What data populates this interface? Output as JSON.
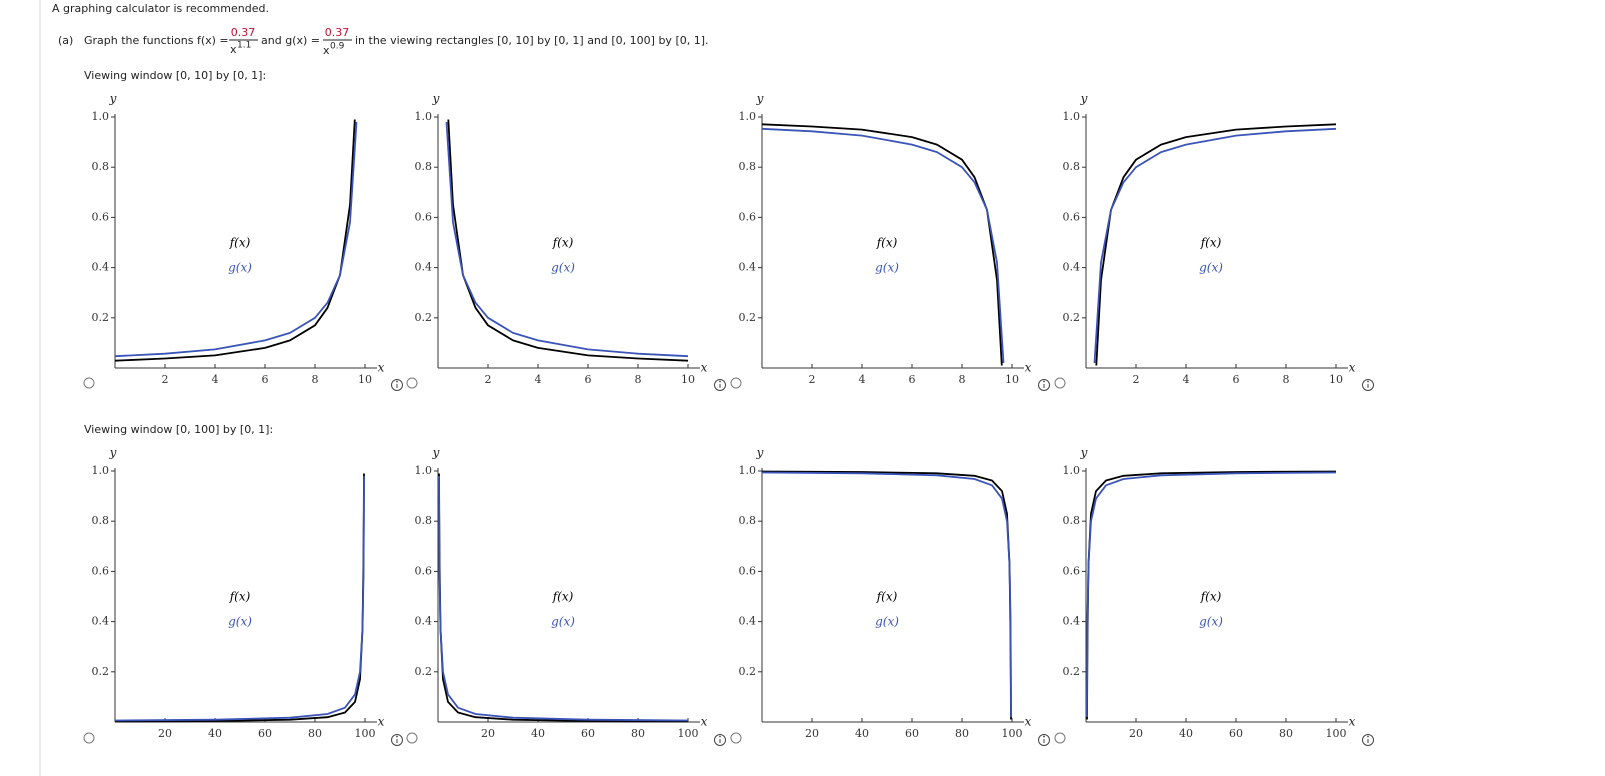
{
  "header": {
    "note": "A graphing calculator is recommended.",
    "part": "(a)",
    "q1": "Graph the functions f(x) =",
    "f_num": "0.37",
    "f_base": "x",
    "f_exp": "1.1",
    "q2": "and g(x) =",
    "g_num": "0.37",
    "g_base": "x",
    "g_exp": "0.9",
    "q3": "in the viewing rectangles [0, 10] by [0, 1] and [0, 100] by [0, 1]."
  },
  "windows": [
    "Viewing window [0, 10] by [0, 1]:",
    "Viewing window [0, 100] by [0, 1]:"
  ],
  "chart_data": [
    {
      "type": "line",
      "xlabel": "x",
      "ylabel": "y",
      "xlim": [
        0,
        10
      ],
      "ylim": [
        0,
        1
      ],
      "xticks": [
        2,
        4,
        6,
        8,
        10
      ],
      "yticks": [
        0.2,
        0.4,
        0.6,
        0.8,
        {
          "value": 1,
          "label": "1.0"
        }
      ],
      "series": [
        {
          "name": "f(x)",
          "color": "#000000",
          "x": [
            9.59,
            9.4,
            9,
            8.5,
            8,
            7,
            6,
            4,
            2,
            0
          ],
          "values": [
            0.99,
            0.65,
            0.37,
            0.24,
            0.17,
            0.11,
            0.08,
            0.05,
            0.038,
            0.029
          ]
        },
        {
          "name": "g(x)",
          "color": "#3b54b8",
          "x": [
            9.66,
            9.4,
            9,
            8.5,
            8,
            7,
            6,
            4,
            2,
            0
          ],
          "values": [
            0.98,
            0.58,
            0.37,
            0.26,
            0.2,
            0.14,
            0.11,
            0.074,
            0.057,
            0.047
          ]
        }
      ]
    },
    {
      "type": "line",
      "xlabel": "x",
      "ylabel": "y",
      "xlim": [
        0,
        10
      ],
      "ylim": [
        0,
        1
      ],
      "xticks": [
        2,
        4,
        6,
        8,
        10
      ],
      "yticks": [
        0.2,
        0.4,
        0.6,
        0.8,
        {
          "value": 1,
          "label": "1.0"
        }
      ],
      "series": [
        {
          "name": "f(x)",
          "color": "#000000",
          "x": [
            0.41,
            0.6,
            1,
            1.5,
            2,
            3,
            4,
            6,
            8,
            10
          ],
          "values": [
            0.99,
            0.65,
            0.37,
            0.24,
            0.17,
            0.11,
            0.08,
            0.05,
            0.038,
            0.029
          ]
        },
        {
          "name": "g(x)",
          "color": "#3b54b8",
          "x": [
            0.34,
            0.6,
            1,
            1.5,
            2,
            3,
            4,
            6,
            8,
            10
          ],
          "values": [
            0.98,
            0.58,
            0.37,
            0.26,
            0.2,
            0.14,
            0.11,
            0.074,
            0.057,
            0.047
          ]
        }
      ]
    },
    {
      "type": "line",
      "xlabel": "x",
      "ylabel": "y",
      "xlim": [
        0,
        10
      ],
      "ylim": [
        0,
        1
      ],
      "xticks": [
        2,
        4,
        6,
        8,
        10
      ],
      "yticks": [
        0.2,
        0.4,
        0.6,
        0.8,
        {
          "value": 1,
          "label": "1.0"
        }
      ],
      "series": [
        {
          "name": "f(x)",
          "color": "#000000",
          "x": [
            9.59,
            9.4,
            9,
            8.5,
            8,
            7,
            6,
            4,
            2,
            0
          ],
          "values": [
            0.01,
            0.35,
            0.63,
            0.76,
            0.83,
            0.89,
            0.92,
            0.95,
            0.962,
            0.971
          ]
        },
        {
          "name": "g(x)",
          "color": "#3b54b8",
          "x": [
            9.66,
            9.4,
            9,
            8.5,
            8,
            7,
            6,
            4,
            2,
            0
          ],
          "values": [
            0.02,
            0.42,
            0.63,
            0.74,
            0.8,
            0.86,
            0.89,
            0.926,
            0.943,
            0.953
          ]
        }
      ]
    },
    {
      "type": "line",
      "xlabel": "x",
      "ylabel": "y",
      "xlim": [
        0,
        10
      ],
      "ylim": [
        0,
        1
      ],
      "xticks": [
        2,
        4,
        6,
        8,
        10
      ],
      "yticks": [
        0.2,
        0.4,
        0.6,
        0.8,
        {
          "value": 1,
          "label": "1.0"
        }
      ],
      "series": [
        {
          "name": "f(x)",
          "color": "#000000",
          "x": [
            0.41,
            0.6,
            1,
            1.5,
            2,
            3,
            4,
            6,
            8,
            10
          ],
          "values": [
            0.01,
            0.35,
            0.63,
            0.76,
            0.83,
            0.89,
            0.92,
            0.95,
            0.962,
            0.971
          ]
        },
        {
          "name": "g(x)",
          "color": "#3b54b8",
          "x": [
            0.34,
            0.6,
            1,
            1.5,
            2,
            3,
            4,
            6,
            8,
            10
          ],
          "values": [
            0.02,
            0.42,
            0.63,
            0.74,
            0.8,
            0.86,
            0.89,
            0.926,
            0.943,
            0.953
          ]
        }
      ]
    },
    {
      "type": "line",
      "xlabel": "x",
      "ylabel": "y",
      "xlim": [
        0,
        100
      ],
      "ylim": [
        0,
        1
      ],
      "xticks": [
        20,
        40,
        60,
        80,
        100
      ],
      "yticks": [
        0.2,
        0.4,
        0.6,
        0.8,
        {
          "value": 1,
          "label": "1.0"
        }
      ],
      "series": [
        {
          "name": "f(x)",
          "color": "#000000",
          "x": [
            99.59,
            99.4,
            99,
            98,
            96,
            92,
            85,
            70,
            40,
            0
          ],
          "values": [
            0.99,
            0.65,
            0.37,
            0.17,
            0.08,
            0.038,
            0.019,
            0.009,
            0.004,
            0.002
          ]
        },
        {
          "name": "g(x)",
          "color": "#3b54b8",
          "x": [
            99.66,
            99.4,
            99,
            98,
            96,
            92,
            85,
            70,
            40,
            0
          ],
          "values": [
            0.98,
            0.58,
            0.37,
            0.2,
            0.11,
            0.057,
            0.032,
            0.017,
            0.009,
            0.006
          ]
        }
      ]
    },
    {
      "type": "line",
      "xlabel": "x",
      "ylabel": "y",
      "xlim": [
        0,
        100
      ],
      "ylim": [
        0,
        1
      ],
      "xticks": [
        20,
        40,
        60,
        80,
        100
      ],
      "yticks": [
        0.2,
        0.4,
        0.6,
        0.8,
        {
          "value": 1,
          "label": "1.0"
        }
      ],
      "series": [
        {
          "name": "f(x)",
          "color": "#000000",
          "x": [
            0.41,
            0.6,
            1,
            2,
            4,
            8,
            15,
            30,
            60,
            100
          ],
          "values": [
            0.99,
            0.65,
            0.37,
            0.17,
            0.08,
            0.038,
            0.019,
            0.009,
            0.004,
            0.002
          ]
        },
        {
          "name": "g(x)",
          "color": "#3b54b8",
          "x": [
            0.34,
            0.6,
            1,
            2,
            4,
            8,
            15,
            30,
            60,
            100
          ],
          "values": [
            0.98,
            0.58,
            0.37,
            0.2,
            0.11,
            0.057,
            0.032,
            0.017,
            0.009,
            0.006
          ]
        }
      ]
    },
    {
      "type": "line",
      "xlabel": "x",
      "ylabel": "y",
      "xlim": [
        0,
        100
      ],
      "ylim": [
        0,
        1
      ],
      "xticks": [
        20,
        40,
        60,
        80,
        100
      ],
      "yticks": [
        0.2,
        0.4,
        0.6,
        0.8,
        {
          "value": 1,
          "label": "1.0"
        }
      ],
      "series": [
        {
          "name": "f(x)",
          "color": "#000000",
          "x": [
            99.59,
            99.4,
            99,
            98,
            96,
            92,
            85,
            70,
            40,
            0
          ],
          "values": [
            0.01,
            0.35,
            0.63,
            0.83,
            0.92,
            0.962,
            0.981,
            0.991,
            0.996,
            0.998
          ]
        },
        {
          "name": "g(x)",
          "color": "#3b54b8",
          "x": [
            99.66,
            99.4,
            99,
            98,
            96,
            92,
            85,
            70,
            40,
            0
          ],
          "values": [
            0.02,
            0.42,
            0.63,
            0.8,
            0.89,
            0.943,
            0.968,
            0.983,
            0.991,
            0.994
          ]
        }
      ]
    },
    {
      "type": "line",
      "xlabel": "x",
      "ylabel": "y",
      "xlim": [
        0,
        100
      ],
      "ylim": [
        0,
        1
      ],
      "xticks": [
        20,
        40,
        60,
        80,
        100
      ],
      "yticks": [
        0.2,
        0.4,
        0.6,
        0.8,
        {
          "value": 1,
          "label": "1.0"
        }
      ],
      "series": [
        {
          "name": "f(x)",
          "color": "#000000",
          "x": [
            0.41,
            0.6,
            1,
            2,
            4,
            8,
            15,
            30,
            60,
            100
          ],
          "values": [
            0.01,
            0.35,
            0.63,
            0.83,
            0.92,
            0.962,
            0.981,
            0.991,
            0.996,
            0.998
          ]
        },
        {
          "name": "g(x)",
          "color": "#3b54b8",
          "x": [
            0.34,
            0.6,
            1,
            2,
            4,
            8,
            15,
            30,
            60,
            100
          ],
          "values": [
            0.02,
            0.42,
            0.63,
            0.8,
            0.89,
            0.943,
            0.968,
            0.983,
            0.991,
            0.994
          ]
        }
      ]
    }
  ]
}
